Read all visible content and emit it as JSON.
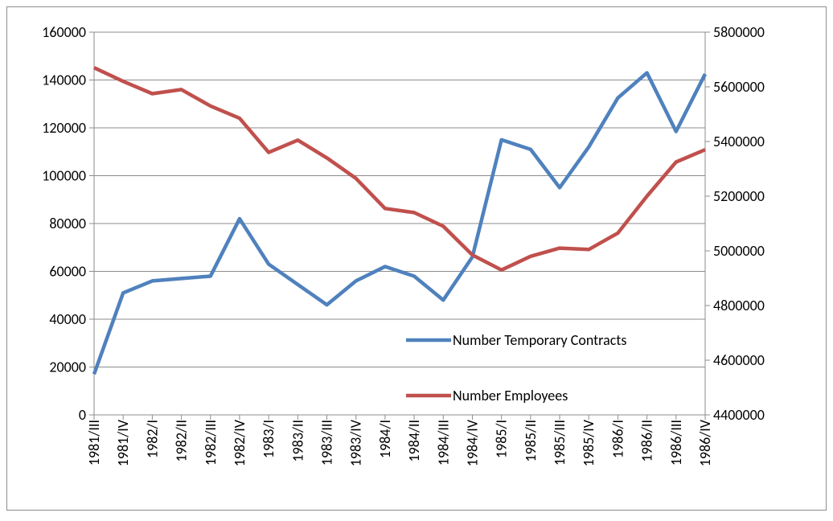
{
  "chart_data": {
    "type": "line",
    "categories": [
      "1981/III",
      "1981/IV",
      "1982/I",
      "1982/II",
      "1982/III",
      "1982/IV",
      "1983/I",
      "1983/II",
      "1983/III",
      "1983/IV",
      "1984/I",
      "1984/II",
      "1984/III",
      "1984/IV",
      "1985/I",
      "1985/II",
      "1985/III",
      "1985/IV",
      "1986/I",
      "1986/II",
      "1986/III",
      "1986/IV"
    ],
    "series": [
      {
        "name": "Number Temporary Contracts",
        "color": "#4f81bd",
        "values": [
          17000,
          51000,
          56000,
          57000,
          58000,
          82000,
          63000,
          54500,
          46000,
          56000,
          62000,
          58000,
          48000,
          66000,
          115000,
          111000,
          95000,
          112000,
          132500,
          143000,
          118500,
          142500
        ]
      },
      {
        "name": "Number Employees",
        "color": "#c0504d",
        "axis": "y2",
        "values": [
          5670000,
          5620000,
          5575000,
          5590000,
          5530000,
          5485000,
          5360000,
          5405000,
          5340000,
          5265000,
          5155000,
          5140000,
          5090000,
          4985000,
          4930000,
          4980000,
          5010000,
          5005000,
          5065000,
          5200000,
          5325000,
          5370000
        ]
      }
    ],
    "ylim": [
      0,
      160000
    ],
    "yticks": [
      0,
      20000,
      40000,
      60000,
      80000,
      100000,
      120000,
      140000,
      160000
    ],
    "y2lim": [
      4400000,
      5800000
    ],
    "y2ticks": [
      4400000,
      4600000,
      4800000,
      5000000,
      5200000,
      5400000,
      5600000,
      5800000
    ],
    "grid": true,
    "legend": "lower-right"
  }
}
